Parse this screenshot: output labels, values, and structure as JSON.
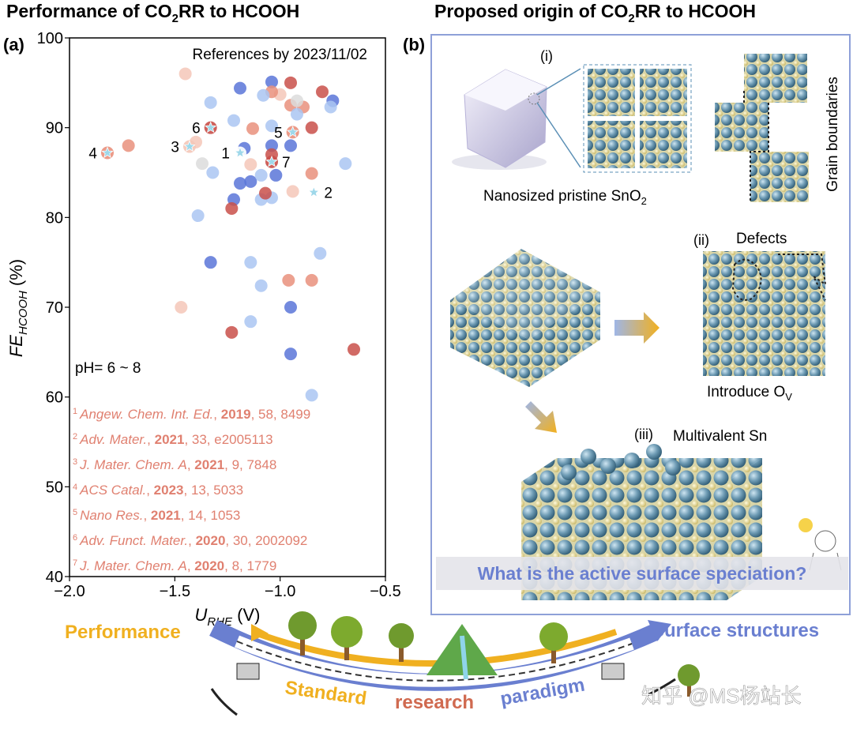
{
  "chart_data": {
    "type": "scatter",
    "panel_label": "(a)",
    "title": [
      "Performance of CO",
      "2",
      "RR to HCOOH"
    ],
    "x_label": [
      "U",
      "RHE",
      " (V)"
    ],
    "y_label": [
      "FE",
      "HCOOH",
      " (%)"
    ],
    "note": "References by 2023/11/02",
    "ph": "pH= 6 ~ 8",
    "xlim": [
      -2.0,
      -0.5
    ],
    "xticks": [
      {
        "value": -2.0,
        "label": "−2.0"
      },
      {
        "value": -1.5,
        "label": "−1.5"
      },
      {
        "value": -1.0,
        "label": "−1.0"
      },
      {
        "value": -0.5,
        "label": "−0.5"
      }
    ],
    "ylim": [
      40,
      100
    ],
    "yticks": [
      40,
      50,
      60,
      70,
      80,
      90,
      100
    ],
    "x": [
      -1.45,
      -1.19,
      -1.04,
      -0.95,
      -0.8,
      -0.75,
      -0.76,
      -1.33,
      -1.0,
      -1.04,
      -1.08,
      -0.95,
      -0.89,
      -0.92,
      -0.92,
      -1.22,
      -1.13,
      -0.85,
      -1.04,
      -1.04,
      -0.95,
      -1.4,
      -1.72,
      -1.17,
      -1.04,
      -1.37,
      -1.32,
      -1.14,
      -0.69,
      -0.85,
      -1.14,
      -1.19,
      -1.09,
      -1.02,
      -1.04,
      -1.09,
      -1.22,
      -1.23,
      -1.07,
      -0.94,
      -1.39,
      -0.81,
      -1.33,
      -1.14,
      -0.85,
      -0.96,
      -1.09,
      -1.47,
      -0.95,
      -1.14,
      -1.23,
      -0.65,
      -0.95,
      -0.85
    ],
    "values": [
      96,
      94.4,
      95.1,
      95,
      94,
      93,
      92.3,
      92.8,
      93.7,
      94,
      93.6,
      92.5,
      92.3,
      93,
      91.5,
      90.8,
      89.9,
      90,
      90.2,
      88,
      88,
      88.4,
      88,
      87.7,
      87,
      86,
      85,
      85.9,
      86,
      84.9,
      84,
      83.8,
      84.7,
      84.7,
      82.2,
      82,
      82,
      81,
      82.7,
      82.9,
      80.2,
      76,
      75,
      75,
      73,
      73,
      72.4,
      70,
      70,
      68.4,
      67.2,
      65.3,
      64.8,
      60.2
    ],
    "colors": [
      "#f4c7b8",
      "#5b76d8",
      "#5b76d8",
      "#c9504a",
      "#c9504a",
      "#5b76d8",
      "#aac6f2",
      "#aac6f2",
      "#f4c7b8",
      "#e9907c",
      "#aac6f2",
      "#e9907c",
      "#e9907c",
      "#dcdcdc",
      "#aac6f2",
      "#aac6f2",
      "#e9907c",
      "#c9504a",
      "#aac6f2",
      "#5b76d8",
      "#5b76d8",
      "#f4c7b8",
      "#e9907c",
      "#5b76d8",
      "#c9504a",
      "#dcdcdc",
      "#aac6f2",
      "#f4c7b8",
      "#aac6f2",
      "#e9907c",
      "#5b76d8",
      "#5b76d8",
      "#aac6f2",
      "#5b76d8",
      "#aac6f2",
      "#aac6f2",
      "#5b76d8",
      "#c9504a",
      "#c9504a",
      "#f4c7b8",
      "#aac6f2",
      "#aac6f2",
      "#5b76d8",
      "#aac6f2",
      "#e9907c",
      "#e9907c",
      "#aac6f2",
      "#f4c7b8",
      "#5b76d8",
      "#aac6f2",
      "#c9504a",
      "#c9504a",
      "#5b76d8",
      "#aac6f2"
    ],
    "highlights": {
      "x": [
        -1.19,
        -0.84,
        -1.43,
        -1.82,
        -0.94,
        -1.33,
        -1.04
      ],
      "values": [
        87.2,
        82.8,
        87.9,
        87.2,
        89.5,
        90,
        86.2
      ],
      "labels": [
        "1",
        "2",
        "3",
        "4",
        "5",
        "6",
        "7"
      ],
      "colors": [
        "#ffffff",
        "#ffffff",
        "#f4c7b8",
        "#e9907c",
        "#e9907c",
        "#c9504a",
        "#c9504a"
      ],
      "star_color": "#9fd8ea"
    },
    "refs": [
      {
        "num": "1",
        "journal": "Angew. Chem. Int. Ed.",
        "year": "2019",
        "rest": ", 58, 8499"
      },
      {
        "num": "2",
        "journal": "Adv. Mater.",
        "year": "2021",
        "rest": ", 33, e2005113"
      },
      {
        "num": "3",
        "journal": "J. Mater. Chem. A",
        "year": "2021",
        "rest": ", 9, 7848"
      },
      {
        "num": "4",
        "journal": "ACS Catal.",
        "year": "2023",
        "rest": ", 13, 5033"
      },
      {
        "num": "5",
        "journal": "Nano Res.",
        "year": "2021",
        "rest": ", 14, 1053"
      },
      {
        "num": "6",
        "journal": "Adv. Funct. Mater.",
        "year": "2020",
        "rest": ", 30, 2002092"
      },
      {
        "num": "7",
        "journal": "J. Mater. Chem. A",
        "year": "2020",
        "rest": ", 8, 1779"
      }
    ],
    "ref_sep": ", "
  },
  "panel_b": {
    "label": "(b)",
    "title": [
      "Proposed origin of CO",
      "2",
      "RR to HCOOH"
    ],
    "i_label": "(i)",
    "pristine": [
      "Nanosized pristine SnO",
      "2"
    ],
    "grain": "Grain boundaries",
    "ii_label": "(ii)",
    "defects": "Defects",
    "ov": [
      "Introduce O",
      "V"
    ],
    "iii_label": "(iii)",
    "multivalent": "Multivalent Sn",
    "question": "What is the active surface speciation?"
  },
  "bottom": {
    "performance": "Performance",
    "surface": "Surface structures",
    "paradigm": [
      "Standard",
      "research",
      "paradigm"
    ],
    "watermark": "知乎 @MS杨站长"
  }
}
